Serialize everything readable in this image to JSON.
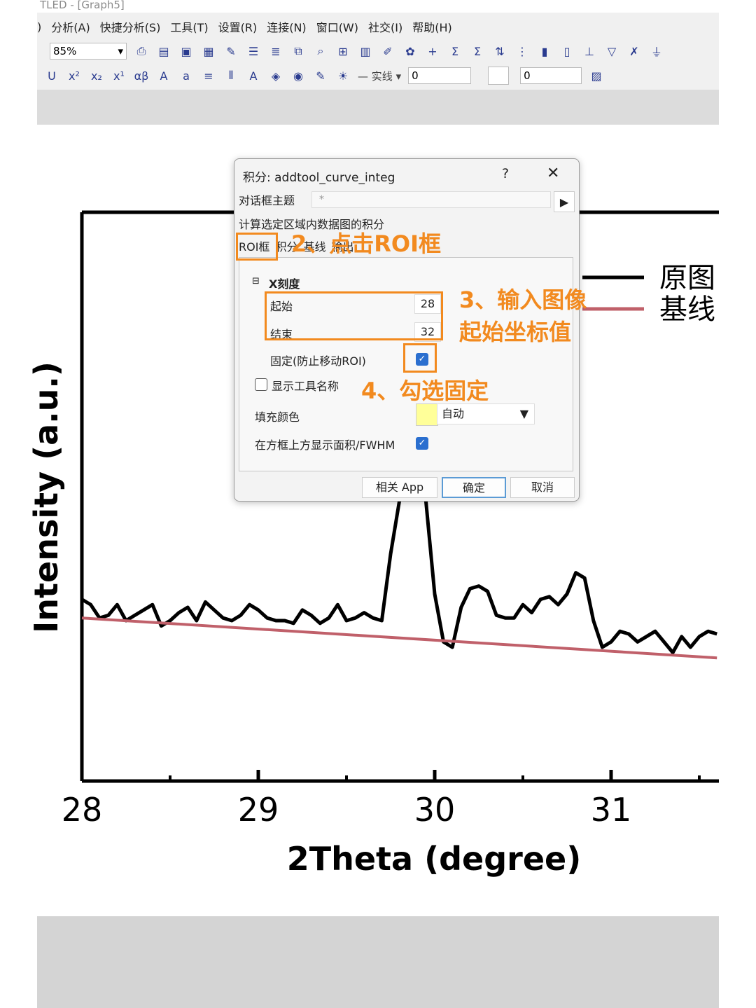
{
  "app": {
    "title": "TLED - [Graph5]",
    "menu": [
      "分析(A)",
      "快捷分析(S)",
      "工具(T)",
      "设置(R)",
      "连接(N)",
      "窗口(W)",
      "社交(I)",
      "帮助(H)"
    ],
    "menu_prefix": ")",
    "zoom": "85%",
    "line_style": "实线",
    "width_value_1": "0",
    "width_value_2": "0"
  },
  "dialog": {
    "title": "积分: addtool_curve_integ",
    "help": "?",
    "close": "✕",
    "theme_label": "对话框主题",
    "theme_value": "*",
    "description": "计算选定区域内数据图的积分",
    "tabs": [
      "ROI框",
      "积分",
      "基线",
      "输出"
    ],
    "group_title": "X刻度",
    "start_label": "起始",
    "start_value": "28",
    "end_label": "结束",
    "end_value": "32",
    "fix_label": "固定(防止移动ROI)",
    "fix_checked": true,
    "show_tool_label": "显示工具名称",
    "show_tool_checked": false,
    "fill_label": "填充颜色",
    "fill_value": "自动",
    "fill_color": "#ffff99",
    "show_area_label": "在方框上方显示面积/FWHM",
    "show_area_checked": true,
    "buttons": {
      "app": "相关 App",
      "ok": "确定",
      "cancel": "取消"
    }
  },
  "annotations": {
    "step2": "2、点击ROI框",
    "step3_line1": "3、输入图像",
    "step3_line2": "起始坐标值",
    "step4": "4、勾选固定",
    "color": "#f28a1f"
  },
  "chart_data": {
    "type": "line",
    "xlabel": "2Theta (degree)",
    "ylabel": "Intensity (a.u.)",
    "xlim": [
      28,
      31.6
    ],
    "ylim": [
      0,
      1
    ],
    "xticks": [
      "28",
      "29",
      "30",
      "31"
    ],
    "series": [
      {
        "name": "原图",
        "color": "#000000",
        "x": [
          28.0,
          28.05,
          28.1,
          28.15,
          28.2,
          28.25,
          28.3,
          28.35,
          28.4,
          28.45,
          28.5,
          28.55,
          28.6,
          28.65,
          28.7,
          28.75,
          28.8,
          28.85,
          28.9,
          28.95,
          29.0,
          29.05,
          29.1,
          29.15,
          29.2,
          29.25,
          29.3,
          29.35,
          29.4,
          29.45,
          29.5,
          29.55,
          29.6,
          29.65,
          29.7,
          29.75,
          29.8,
          29.85,
          29.9,
          29.95,
          30.0,
          30.05,
          30.1,
          30.15,
          30.2,
          30.25,
          30.3,
          30.35,
          30.4,
          30.45,
          30.5,
          30.55,
          30.6,
          30.65,
          30.7,
          30.75,
          30.8,
          30.85,
          30.9,
          30.95,
          31.0,
          31.05,
          31.1,
          31.15,
          31.2,
          31.25,
          31.3,
          31.35,
          31.4,
          31.45,
          31.5,
          31.55,
          31.6
        ],
        "values": [
          0.38,
          0.36,
          0.31,
          0.32,
          0.36,
          0.3,
          0.32,
          0.34,
          0.36,
          0.28,
          0.3,
          0.33,
          0.35,
          0.3,
          0.37,
          0.34,
          0.31,
          0.3,
          0.32,
          0.36,
          0.34,
          0.31,
          0.3,
          0.3,
          0.29,
          0.34,
          0.32,
          0.29,
          0.31,
          0.36,
          0.3,
          0.31,
          0.33,
          0.31,
          0.3,
          0.55,
          0.75,
          1.2,
          1.15,
          0.75,
          0.4,
          0.22,
          0.2,
          0.35,
          0.42,
          0.43,
          0.41,
          0.32,
          0.31,
          0.31,
          0.36,
          0.33,
          0.38,
          0.39,
          0.36,
          0.4,
          0.48,
          0.46,
          0.3,
          0.2,
          0.22,
          0.26,
          0.25,
          0.22,
          0.24,
          0.26,
          0.22,
          0.18,
          0.24,
          0.2,
          0.24,
          0.26,
          0.25
        ]
      },
      {
        "name": "基线",
        "color": "#c0606a",
        "x": [
          28.0,
          31.6
        ],
        "values": [
          0.31,
          0.16
        ]
      }
    ],
    "legend": {
      "position": "top-right",
      "items": [
        "原图",
        "基线"
      ]
    }
  }
}
